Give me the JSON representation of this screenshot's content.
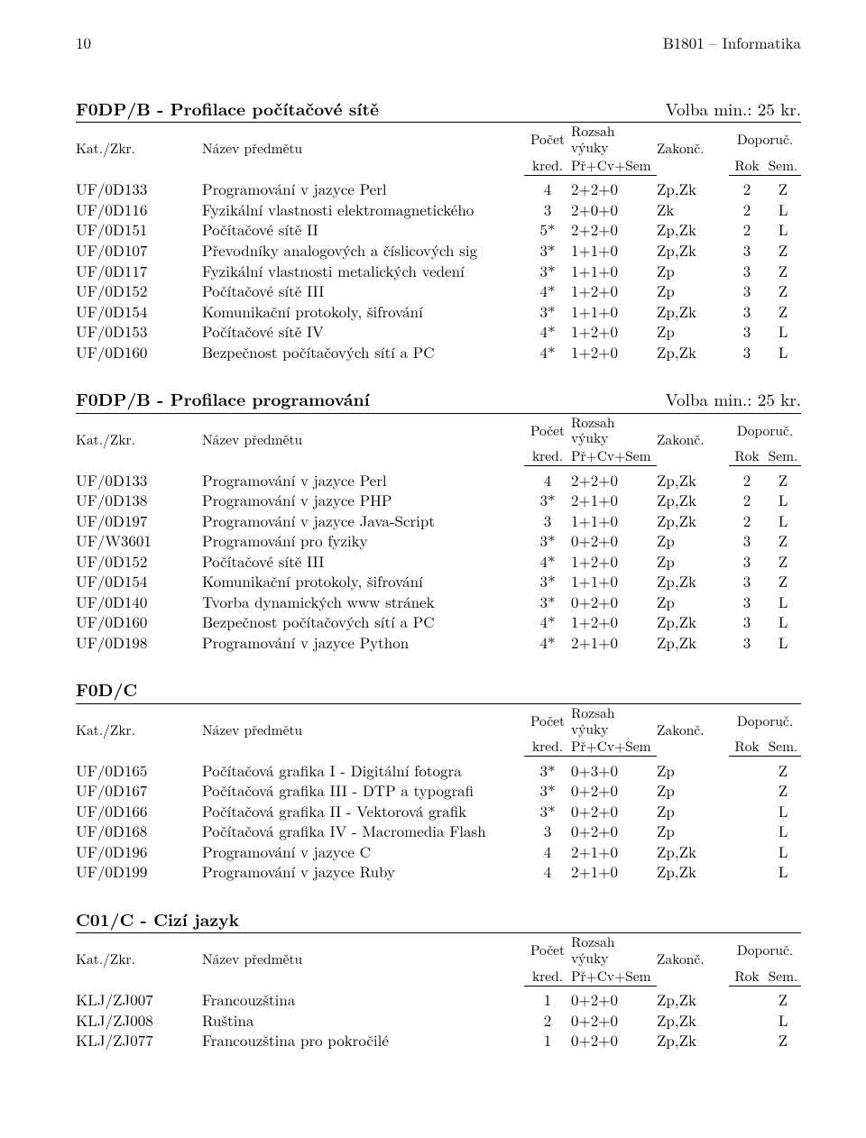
{
  "header": {
    "page": "10",
    "title": "B1801 – Informatika"
  },
  "col_labels": {
    "kat": "Kat./Zkr.",
    "name": "Název předmětu",
    "kred1": "Počet",
    "kred2": "kred.",
    "roz1": "Rozsah výuky",
    "roz2": "Př+Cv+Sem",
    "zak": "Zakonč.",
    "dop": "Doporuč.",
    "rok": "Rok",
    "sem": "Sem."
  },
  "sections": [
    {
      "title": "F0DP/B - Profilace počítačové sítě",
      "volba": "Volba min.: 25 kr.",
      "rows": [
        {
          "k": "UF/0D133",
          "n": "Programování v jazyce Perl",
          "kr": "4",
          "r": "2+2+0",
          "z": "Zp,Zk",
          "rok": "2",
          "s": "Z"
        },
        {
          "k": "UF/0D116",
          "n": "Fyzikální vlastnosti elektromagnetického",
          "kr": "3",
          "r": "2+0+0",
          "z": "Zk",
          "rok": "2",
          "s": "L"
        },
        {
          "k": "UF/0D151",
          "n": "Počítačové sítě II",
          "kr": "5*",
          "r": "2+2+0",
          "z": "Zp,Zk",
          "rok": "2",
          "s": "L"
        },
        {
          "k": "UF/0D107",
          "n": "Převodníky analogových a číslicových sig",
          "kr": "3*",
          "r": "1+1+0",
          "z": "Zp,Zk",
          "rok": "3",
          "s": "Z"
        },
        {
          "k": "UF/0D117",
          "n": "Fyzikální vlastnosti metalických vedení",
          "kr": "3*",
          "r": "1+1+0",
          "z": "Zp",
          "rok": "3",
          "s": "Z"
        },
        {
          "k": "UF/0D152",
          "n": "Počítačové sítě III",
          "kr": "4*",
          "r": "1+2+0",
          "z": "Zp",
          "rok": "3",
          "s": "Z"
        },
        {
          "k": "UF/0D154",
          "n": "Komunikační protokoly, šifrování",
          "kr": "3*",
          "r": "1+1+0",
          "z": "Zp,Zk",
          "rok": "3",
          "s": "Z"
        },
        {
          "k": "UF/0D153",
          "n": "Počítačové sítě IV",
          "kr": "4*",
          "r": "1+2+0",
          "z": "Zp",
          "rok": "3",
          "s": "L"
        },
        {
          "k": "UF/0D160",
          "n": "Bezpečnost počítačových sítí a PC",
          "kr": "4*",
          "r": "1+2+0",
          "z": "Zp,Zk",
          "rok": "3",
          "s": "L"
        }
      ]
    },
    {
      "title": "F0DP/B - Profilace programování",
      "volba": "Volba min.: 25 kr.",
      "rows": [
        {
          "k": "UF/0D133",
          "n": "Programování v jazyce Perl",
          "kr": "4",
          "r": "2+2+0",
          "z": "Zp,Zk",
          "rok": "2",
          "s": "Z"
        },
        {
          "k": "UF/0D138",
          "n": "Programování v jazyce PHP",
          "kr": "3*",
          "r": "2+1+0",
          "z": "Zp,Zk",
          "rok": "2",
          "s": "L"
        },
        {
          "k": "UF/0D197",
          "n": "Programování v jazyce Java-Script",
          "kr": "3",
          "r": "1+1+0",
          "z": "Zp,Zk",
          "rok": "2",
          "s": "L"
        },
        {
          "k": "UF/W3601",
          "n": "Programování pro fyziky",
          "kr": "3*",
          "r": "0+2+0",
          "z": "Zp",
          "rok": "3",
          "s": "Z"
        },
        {
          "k": "UF/0D152",
          "n": "Počítačové sítě III",
          "kr": "4*",
          "r": "1+2+0",
          "z": "Zp",
          "rok": "3",
          "s": "Z"
        },
        {
          "k": "UF/0D154",
          "n": "Komunikační protokoly, šifrování",
          "kr": "3*",
          "r": "1+1+0",
          "z": "Zp,Zk",
          "rok": "3",
          "s": "Z"
        },
        {
          "k": "UF/0D140",
          "n": "Tvorba dynamických www stránek",
          "kr": "3*",
          "r": "0+2+0",
          "z": "Zp",
          "rok": "3",
          "s": "L"
        },
        {
          "k": "UF/0D160",
          "n": "Bezpečnost počítačových sítí a PC",
          "kr": "4*",
          "r": "1+2+0",
          "z": "Zp,Zk",
          "rok": "3",
          "s": "L"
        },
        {
          "k": "UF/0D198",
          "n": "Programování v jazyce Python",
          "kr": "4*",
          "r": "2+1+0",
          "z": "Zp,Zk",
          "rok": "3",
          "s": "L"
        }
      ]
    },
    {
      "title": "F0D/C",
      "volba": "",
      "rows": [
        {
          "k": "UF/0D165",
          "n": "Počítačová grafika I - Digitální fotogra",
          "kr": "3*",
          "r": "0+3+0",
          "z": "Zp",
          "rok": "",
          "s": "Z"
        },
        {
          "k": "UF/0D167",
          "n": "Počítačová grafika III - DTP a typografi",
          "kr": "3*",
          "r": "0+2+0",
          "z": "Zp",
          "rok": "",
          "s": "Z"
        },
        {
          "k": "UF/0D166",
          "n": "Počítačová grafika II - Vektorová grafik",
          "kr": "3*",
          "r": "0+2+0",
          "z": "Zp",
          "rok": "",
          "s": "L"
        },
        {
          "k": "UF/0D168",
          "n": "Počítačová grafika IV - Macromedia Flash",
          "kr": "3",
          "r": "0+2+0",
          "z": "Zp",
          "rok": "",
          "s": "L"
        },
        {
          "k": "UF/0D196",
          "n": "Programování v jazyce C",
          "kr": "4",
          "r": "2+1+0",
          "z": "Zp,Zk",
          "rok": "",
          "s": "L"
        },
        {
          "k": "UF/0D199",
          "n": "Programování v jazyce Ruby",
          "kr": "4",
          "r": "2+1+0",
          "z": "Zp,Zk",
          "rok": "",
          "s": "L"
        }
      ]
    },
    {
      "title": "C01/C - Cizí jazyk",
      "volba": "",
      "rows": [
        {
          "k": "KLJ/ZJ007",
          "n": "Francouzština",
          "kr": "1",
          "r": "0+2+0",
          "z": "Zp,Zk",
          "rok": "",
          "s": "Z"
        },
        {
          "k": "KLJ/ZJ008",
          "n": "Ruština",
          "kr": "2",
          "r": "0+2+0",
          "z": "Zp,Zk",
          "rok": "",
          "s": "L"
        },
        {
          "k": "KLJ/ZJ077",
          "n": "Francouzština pro pokročilé",
          "kr": "1",
          "r": "0+2+0",
          "z": "Zp,Zk",
          "rok": "",
          "s": "Z"
        }
      ]
    }
  ]
}
